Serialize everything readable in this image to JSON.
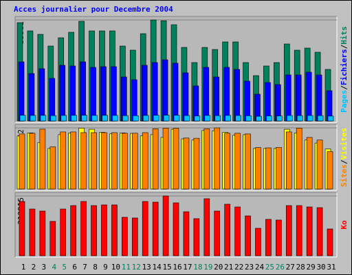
{
  "title": "Acces journalier pour Decembre 2004",
  "legend_separator": "/",
  "chart_data": [
    {
      "type": "bar",
      "ylim": [
        0,
        59961
      ],
      "yticks": [
        59961
      ],
      "grid": true,
      "series": [
        {
          "name": "Pages",
          "color": "#00c0ff",
          "values": [
            3400,
            3300,
            3350,
            3200,
            3300,
            3350,
            3400,
            3300,
            3350,
            3300,
            3200,
            3150,
            3300,
            3400,
            3450,
            3400,
            3250,
            3000,
            3300,
            3200,
            3300,
            3250,
            3100,
            2800,
            3050,
            3000,
            3250,
            3200,
            3250,
            3200,
            2900
          ]
        },
        {
          "name": "Fichiers",
          "color": "#0000ff",
          "values": [
            35088,
            28152,
            31008,
            25296,
            33048,
            32640,
            35088,
            31824,
            32232,
            32232,
            26112,
            24480,
            33048,
            34680,
            36312,
            34272,
            28560,
            20808,
            31824,
            26112,
            31824,
            30600,
            23664,
            15912,
            22848,
            21624,
            27336,
            27336,
            28968,
            27336,
            17952
          ]
        },
        {
          "name": "Hits",
          "color": "#00805c",
          "values": [
            58344,
            53448,
            51408,
            44472,
            49368,
            52632,
            59160,
            53448,
            53448,
            53448,
            44472,
            42024,
            51816,
            59961,
            59500,
            57120,
            43656,
            34680,
            43656,
            42432,
            46920,
            46920,
            34680,
            26928,
            32640,
            34680,
            45696,
            42024,
            43248,
            40800,
            30600
          ]
        }
      ]
    },
    {
      "type": "bar",
      "ylim": [
        0,
        512
      ],
      "yticks": [
        512
      ],
      "grid": true,
      "series": [
        {
          "name": "Sites",
          "color": "#ff8000",
          "values": [
            461,
            467,
            501,
            353,
            478,
            478,
            472,
            472,
            472,
            472,
            467,
            467,
            472,
            505,
            510,
            508,
            427,
            425,
            505,
            512,
            467,
            467,
            461,
            347,
            345,
            348,
            478,
            510,
            432,
            410,
            313
          ]
        },
        {
          "name": "Visites",
          "color": "#ffff00",
          "values": [
            444,
            470,
            390,
            340,
            455,
            470,
            510,
            500,
            475,
            462,
            470,
            466,
            445,
            455,
            432,
            500,
            420,
            410,
            490,
            488,
            475,
            450,
            455,
            340,
            340,
            340,
            500,
            470,
            410,
            385,
            335
          ]
        }
      ]
    },
    {
      "type": "bar",
      "ylim": [
        0,
        313915
      ],
      "yticks": [
        313915
      ],
      "grid": true,
      "categories": [
        "1",
        "2",
        "3",
        "4",
        "5",
        "6",
        "7",
        "8",
        "9",
        "10",
        "11",
        "12",
        "13",
        "14",
        "15",
        "16",
        "17",
        "18",
        "19",
        "20",
        "21",
        "22",
        "23",
        "24",
        "25",
        "26",
        "27",
        "28",
        "29",
        "30",
        "31"
      ],
      "category_colors": [
        "#000000",
        "#000000",
        "#000000",
        "#00805c",
        "#00805c",
        "#000000",
        "#000000",
        "#000000",
        "#000000",
        "#000000",
        "#00805c",
        "#00805c",
        "#000000",
        "#000000",
        "#000000",
        "#000000",
        "#000000",
        "#00805c",
        "#00805c",
        "#000000",
        "#000000",
        "#000000",
        "#000000",
        "#000000",
        "#00805c",
        "#00805c",
        "#000000",
        "#000000",
        "#000000",
        "#000000",
        "#000000"
      ],
      "series": [
        {
          "name": "Ko",
          "color": "#ff0000",
          "values": [
            285032,
            245344,
            234520,
            180400,
            245344,
            263384,
            285032,
            263384,
            266992,
            266992,
            202048,
            198440,
            285032,
            281424,
            313915,
            277816,
            230912,
            194832,
            299464,
            234520,
            270600,
            256168,
            209264,
            144320,
            191224,
            187616,
            263384,
            263384,
            256168,
            252560,
            140712
          ]
        }
      ]
    }
  ]
}
